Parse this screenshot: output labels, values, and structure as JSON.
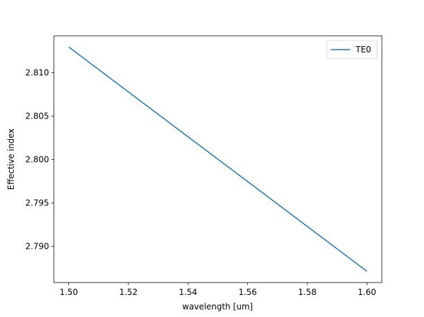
{
  "chart_data": {
    "type": "line",
    "xlabel": "wavelength [um]",
    "ylabel": "Effective index",
    "x": [
      1.5,
      1.52,
      1.54,
      1.56,
      1.58,
      1.6
    ],
    "series": [
      {
        "name": "TE0",
        "color": "#1f77b4",
        "values": [
          2.81296,
          2.80779,
          2.80262,
          2.79746,
          2.79229,
          2.78712
        ]
      }
    ],
    "xlim": [
      1.495,
      1.605
    ],
    "ylim": [
      2.78583,
      2.81425
    ],
    "xticks": [
      {
        "value": 1.5,
        "label": "1.50"
      },
      1.52,
      1.54,
      1.56,
      1.58,
      {
        "value": 1.6,
        "label": "1.60"
      }
    ],
    "yticks": [
      {
        "value": 2.79,
        "label": "2.790"
      },
      2.795,
      {
        "value": 2.8,
        "label": "2.800"
      },
      2.805,
      {
        "value": 2.81,
        "label": "2.810"
      }
    ],
    "legend": "upper right"
  }
}
